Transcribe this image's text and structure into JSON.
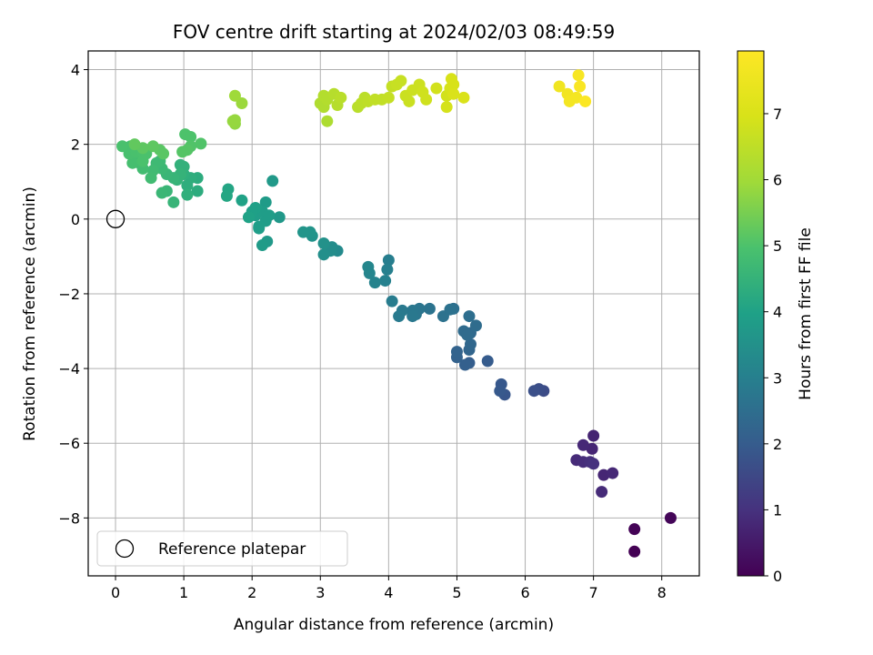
{
  "chart_data": {
    "type": "scatter",
    "title": "FOV centre drift starting at 2024/02/03 08:49:59",
    "xlabel": "Angular distance from reference (arcmin)",
    "ylabel": "Rotation from reference (arcmin)",
    "xlim": [
      -0.4,
      8.55
    ],
    "ylim": [
      -9.55,
      4.5
    ],
    "xticks": [
      0,
      1,
      2,
      3,
      4,
      5,
      6,
      7,
      8
    ],
    "yticks": [
      -8,
      -6,
      -4,
      -2,
      0,
      2,
      4
    ],
    "grid": true,
    "legend": {
      "placement": "lower-left",
      "entries": [
        "Reference platepar"
      ]
    },
    "reference_point": {
      "x": 0,
      "y": 0
    },
    "colorbar": {
      "label": "Hours from first FF file",
      "range": [
        0,
        7.95
      ],
      "ticks": [
        0,
        1,
        2,
        3,
        4,
        5,
        6,
        7
      ],
      "colormap": "viridis"
    },
    "points": [
      {
        "x": 7.6,
        "y": -8.9,
        "t": 0.0
      },
      {
        "x": 7.6,
        "y": -8.3,
        "t": 0.05
      },
      {
        "x": 8.13,
        "y": -8.0,
        "t": 0.1
      },
      {
        "x": 7.0,
        "y": -5.8,
        "t": 0.7
      },
      {
        "x": 6.98,
        "y": -6.15,
        "t": 0.75
      },
      {
        "x": 6.85,
        "y": -6.05,
        "t": 0.8
      },
      {
        "x": 6.75,
        "y": -6.45,
        "t": 0.85
      },
      {
        "x": 6.85,
        "y": -6.5,
        "t": 0.9
      },
      {
        "x": 6.95,
        "y": -6.5,
        "t": 0.95
      },
      {
        "x": 7.0,
        "y": -6.55,
        "t": 1.0
      },
      {
        "x": 7.15,
        "y": -6.85,
        "t": 0.75
      },
      {
        "x": 7.28,
        "y": -6.8,
        "t": 0.8
      },
      {
        "x": 7.12,
        "y": -7.3,
        "t": 0.85
      },
      {
        "x": 6.27,
        "y": -4.6,
        "t": 1.6
      },
      {
        "x": 6.2,
        "y": -4.55,
        "t": 1.65
      },
      {
        "x": 6.13,
        "y": -4.6,
        "t": 1.7
      },
      {
        "x": 5.7,
        "y": -4.7,
        "t": 1.85
      },
      {
        "x": 5.65,
        "y": -4.42,
        "t": 1.9
      },
      {
        "x": 5.63,
        "y": -4.6,
        "t": 1.92
      },
      {
        "x": 5.45,
        "y": -3.8,
        "t": 2.0
      },
      {
        "x": 5.18,
        "y": -3.85,
        "t": 2.05
      },
      {
        "x": 5.12,
        "y": -3.9,
        "t": 2.1
      },
      {
        "x": 5.0,
        "y": -3.7,
        "t": 2.15
      },
      {
        "x": 5.0,
        "y": -3.55,
        "t": 2.2
      },
      {
        "x": 5.18,
        "y": -3.5,
        "t": 2.25
      },
      {
        "x": 5.2,
        "y": -3.35,
        "t": 2.3
      },
      {
        "x": 5.2,
        "y": -3.05,
        "t": 2.35
      },
      {
        "x": 5.1,
        "y": -3.0,
        "t": 2.4
      },
      {
        "x": 5.28,
        "y": -2.85,
        "t": 2.45
      },
      {
        "x": 5.18,
        "y": -2.6,
        "t": 2.5
      },
      {
        "x": 5.15,
        "y": -3.1,
        "t": 2.4
      },
      {
        "x": 4.95,
        "y": -2.4,
        "t": 2.55
      },
      {
        "x": 4.8,
        "y": -2.6,
        "t": 2.6
      },
      {
        "x": 4.6,
        "y": -2.4,
        "t": 2.65
      },
      {
        "x": 4.45,
        "y": -2.4,
        "t": 2.7
      },
      {
        "x": 4.4,
        "y": -2.55,
        "t": 2.72
      },
      {
        "x": 4.35,
        "y": -2.45,
        "t": 2.75
      },
      {
        "x": 4.35,
        "y": -2.6,
        "t": 2.78
      },
      {
        "x": 4.2,
        "y": -2.45,
        "t": 2.8
      },
      {
        "x": 4.15,
        "y": -2.6,
        "t": 2.85
      },
      {
        "x": 4.05,
        "y": -2.2,
        "t": 2.9
      },
      {
        "x": 4.0,
        "y": -1.1,
        "t": 2.95
      },
      {
        "x": 3.98,
        "y": -1.35,
        "t": 3.0
      },
      {
        "x": 3.95,
        "y": -1.65,
        "t": 3.05
      },
      {
        "x": 3.8,
        "y": -1.7,
        "t": 3.1
      },
      {
        "x": 3.72,
        "y": -1.45,
        "t": 3.15
      },
      {
        "x": 3.7,
        "y": -1.28,
        "t": 3.2
      },
      {
        "x": 4.9,
        "y": -2.42,
        "t": 2.6
      },
      {
        "x": 3.25,
        "y": -0.85,
        "t": 3.3
      },
      {
        "x": 3.17,
        "y": -0.75,
        "t": 3.35
      },
      {
        "x": 3.15,
        "y": -0.85,
        "t": 3.4
      },
      {
        "x": 3.05,
        "y": -0.95,
        "t": 3.45
      },
      {
        "x": 3.05,
        "y": -0.65,
        "t": 3.5
      },
      {
        "x": 2.88,
        "y": -0.45,
        "t": 3.55
      },
      {
        "x": 2.85,
        "y": -0.35,
        "t": 3.6
      },
      {
        "x": 2.75,
        "y": -0.35,
        "t": 3.62
      },
      {
        "x": 2.4,
        "y": 0.05,
        "t": 3.7
      },
      {
        "x": 2.3,
        "y": 1.02,
        "t": 3.75
      },
      {
        "x": 2.22,
        "y": -0.6,
        "t": 3.75
      },
      {
        "x": 2.15,
        "y": -0.7,
        "t": 3.8
      },
      {
        "x": 2.2,
        "y": 0.45,
        "t": 3.8
      },
      {
        "x": 2.2,
        "y": -0.05,
        "t": 3.85
      },
      {
        "x": 2.15,
        "y": 0.2,
        "t": 3.85
      },
      {
        "x": 2.1,
        "y": -0.2,
        "t": 3.9
      },
      {
        "x": 2.05,
        "y": 0.1,
        "t": 3.9
      },
      {
        "x": 2.05,
        "y": 0.3,
        "t": 3.95
      },
      {
        "x": 2.0,
        "y": 0.2,
        "t": 3.95
      },
      {
        "x": 1.95,
        "y": 0.05,
        "t": 4.0
      },
      {
        "x": 1.85,
        "y": 0.5,
        "t": 4.0
      },
      {
        "x": 2.25,
        "y": 0.1,
        "t": 3.85
      },
      {
        "x": 2.1,
        "y": -0.25,
        "t": 3.88
      },
      {
        "x": 1.65,
        "y": 0.8,
        "t": 4.1
      },
      {
        "x": 1.63,
        "y": 0.62,
        "t": 4.12
      },
      {
        "x": 1.2,
        "y": 1.1,
        "t": 4.3
      },
      {
        "x": 1.2,
        "y": 0.75,
        "t": 4.3
      },
      {
        "x": 1.1,
        "y": 1.1,
        "t": 4.35
      },
      {
        "x": 1.05,
        "y": 0.9,
        "t": 4.35
      },
      {
        "x": 1.05,
        "y": 0.65,
        "t": 4.4
      },
      {
        "x": 1.0,
        "y": 1.2,
        "t": 4.4
      },
      {
        "x": 1.0,
        "y": 1.4,
        "t": 4.45
      },
      {
        "x": 0.95,
        "y": 1.45,
        "t": 4.45
      },
      {
        "x": 0.95,
        "y": 1.2,
        "t": 4.5
      },
      {
        "x": 0.9,
        "y": 1.05,
        "t": 4.5
      },
      {
        "x": 0.85,
        "y": 1.1,
        "t": 4.55
      },
      {
        "x": 0.85,
        "y": 0.45,
        "t": 4.55
      },
      {
        "x": 0.75,
        "y": 1.2,
        "t": 4.6
      },
      {
        "x": 0.75,
        "y": 0.75,
        "t": 4.6
      },
      {
        "x": 0.68,
        "y": 0.7,
        "t": 4.62
      },
      {
        "x": 0.68,
        "y": 1.35,
        "t": 4.65
      },
      {
        "x": 0.65,
        "y": 1.55,
        "t": 4.7
      },
      {
        "x": 0.6,
        "y": 1.5,
        "t": 4.72
      },
      {
        "x": 0.55,
        "y": 1.3,
        "t": 4.75
      },
      {
        "x": 0.52,
        "y": 1.1,
        "t": 4.78
      },
      {
        "x": 0.4,
        "y": 1.35,
        "t": 4.8
      },
      {
        "x": 0.35,
        "y": 1.5,
        "t": 4.82
      },
      {
        "x": 0.3,
        "y": 1.65,
        "t": 4.85
      },
      {
        "x": 0.25,
        "y": 1.5,
        "t": 4.88
      },
      {
        "x": 0.22,
        "y": 1.95,
        "t": 4.9
      },
      {
        "x": 0.2,
        "y": 1.75,
        "t": 4.92
      },
      {
        "x": 0.1,
        "y": 1.95,
        "t": 4.95
      },
      {
        "x": 0.3,
        "y": 1.8,
        "t": 4.95
      },
      {
        "x": 0.4,
        "y": 1.8,
        "t": 4.97
      },
      {
        "x": 0.4,
        "y": 1.55,
        "t": 4.97
      },
      {
        "x": 0.45,
        "y": 1.75,
        "t": 4.98
      },
      {
        "x": 1.02,
        "y": 2.27,
        "t": 5.0
      },
      {
        "x": 1.1,
        "y": 2.2,
        "t": 5.0
      },
      {
        "x": 1.25,
        "y": 2.02,
        "t": 5.05
      },
      {
        "x": 1.1,
        "y": 1.95,
        "t": 5.05
      },
      {
        "x": 1.05,
        "y": 1.85,
        "t": 5.1
      },
      {
        "x": 0.98,
        "y": 1.8,
        "t": 5.1
      },
      {
        "x": 0.7,
        "y": 1.75,
        "t": 5.15
      },
      {
        "x": 0.65,
        "y": 1.85,
        "t": 5.15
      },
      {
        "x": 0.55,
        "y": 1.95,
        "t": 5.2
      },
      {
        "x": 0.4,
        "y": 1.9,
        "t": 5.2
      },
      {
        "x": 0.28,
        "y": 2.0,
        "t": 5.25
      },
      {
        "x": 1.75,
        "y": 2.55,
        "t": 5.8
      },
      {
        "x": 1.75,
        "y": 2.65,
        "t": 5.85
      },
      {
        "x": 1.72,
        "y": 2.62,
        "t": 5.85
      },
      {
        "x": 1.85,
        "y": 3.1,
        "t": 5.9
      },
      {
        "x": 1.75,
        "y": 3.3,
        "t": 5.95
      },
      {
        "x": 3.1,
        "y": 2.62,
        "t": 6.2
      },
      {
        "x": 3.0,
        "y": 3.1,
        "t": 6.25
      },
      {
        "x": 3.05,
        "y": 3.0,
        "t": 6.25
      },
      {
        "x": 3.05,
        "y": 3.3,
        "t": 6.3
      },
      {
        "x": 3.1,
        "y": 3.2,
        "t": 6.3
      },
      {
        "x": 3.2,
        "y": 3.35,
        "t": 6.35
      },
      {
        "x": 3.25,
        "y": 3.05,
        "t": 6.35
      },
      {
        "x": 3.3,
        "y": 3.25,
        "t": 6.4
      },
      {
        "x": 3.55,
        "y": 3.0,
        "t": 6.4
      },
      {
        "x": 3.6,
        "y": 3.1,
        "t": 6.45
      },
      {
        "x": 3.65,
        "y": 3.25,
        "t": 6.45
      },
      {
        "x": 3.7,
        "y": 3.15,
        "t": 6.5
      },
      {
        "x": 3.8,
        "y": 3.2,
        "t": 6.55
      },
      {
        "x": 3.9,
        "y": 3.2,
        "t": 6.55
      },
      {
        "x": 4.0,
        "y": 3.25,
        "t": 6.6
      },
      {
        "x": 4.05,
        "y": 3.55,
        "t": 6.6
      },
      {
        "x": 4.12,
        "y": 3.6,
        "t": 6.65
      },
      {
        "x": 4.18,
        "y": 3.7,
        "t": 6.65
      },
      {
        "x": 4.25,
        "y": 3.3,
        "t": 6.7
      },
      {
        "x": 4.3,
        "y": 3.15,
        "t": 6.7
      },
      {
        "x": 4.35,
        "y": 3.45,
        "t": 6.75
      },
      {
        "x": 4.45,
        "y": 3.6,
        "t": 6.75
      },
      {
        "x": 4.5,
        "y": 3.4,
        "t": 6.8
      },
      {
        "x": 4.55,
        "y": 3.2,
        "t": 6.8
      },
      {
        "x": 4.7,
        "y": 3.5,
        "t": 6.85
      },
      {
        "x": 4.85,
        "y": 3.3,
        "t": 6.85
      },
      {
        "x": 4.85,
        "y": 3.0,
        "t": 6.9
      },
      {
        "x": 4.9,
        "y": 3.5,
        "t": 6.9
      },
      {
        "x": 4.92,
        "y": 3.75,
        "t": 6.95
      },
      {
        "x": 4.95,
        "y": 3.6,
        "t": 6.95
      },
      {
        "x": 4.95,
        "y": 3.35,
        "t": 7.0
      },
      {
        "x": 5.1,
        "y": 3.25,
        "t": 7.0
      },
      {
        "x": 6.5,
        "y": 3.55,
        "t": 7.6
      },
      {
        "x": 6.62,
        "y": 3.35,
        "t": 7.65
      },
      {
        "x": 6.65,
        "y": 3.15,
        "t": 7.7
      },
      {
        "x": 6.75,
        "y": 3.25,
        "t": 7.7
      },
      {
        "x": 6.78,
        "y": 3.85,
        "t": 7.8
      },
      {
        "x": 6.8,
        "y": 3.55,
        "t": 7.85
      },
      {
        "x": 6.88,
        "y": 3.15,
        "t": 7.9
      }
    ]
  }
}
